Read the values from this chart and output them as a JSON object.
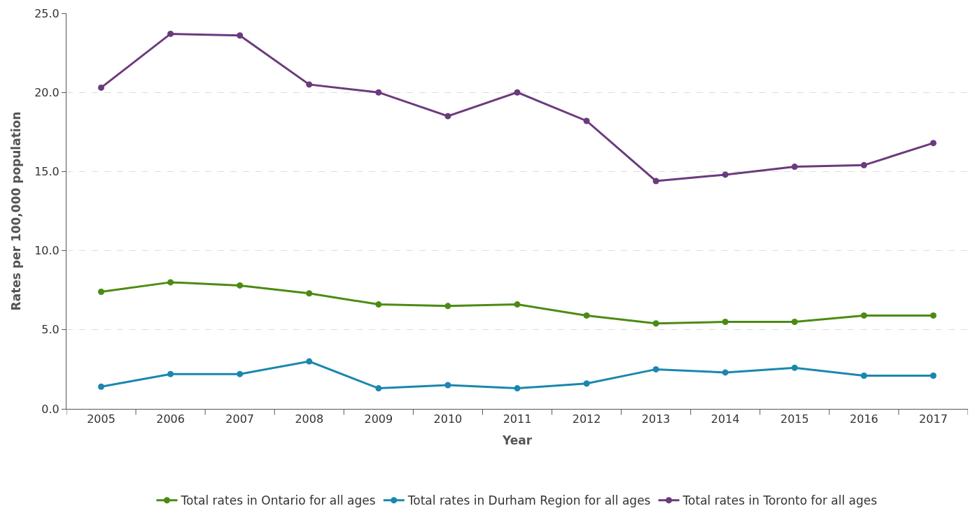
{
  "chart_data": {
    "type": "line",
    "xlabel": "Year",
    "ylabel": "Rates per 100,000 population",
    "categories": [
      "2005",
      "2006",
      "2007",
      "2008",
      "2009",
      "2010",
      "2011",
      "2012",
      "2013",
      "2014",
      "2015",
      "2016",
      "2017"
    ],
    "series": [
      {
        "name": "Total rates in Ontario for all ages",
        "color": "#4b8b12",
        "values": [
          7.4,
          8.0,
          7.8,
          7.3,
          6.6,
          6.5,
          6.6,
          5.9,
          5.4,
          5.5,
          5.5,
          5.9,
          5.9
        ]
      },
      {
        "name": "Total rates in Durham Region for all ages",
        "color": "#1a87ae",
        "values": [
          1.4,
          2.2,
          2.2,
          3.0,
          1.3,
          1.5,
          1.3,
          1.6,
          2.5,
          2.3,
          2.6,
          2.1,
          2.1
        ]
      },
      {
        "name": "Total rates in Toronto for all ages",
        "color": "#6b3a7d",
        "values": [
          20.3,
          23.7,
          23.6,
          20.5,
          20.0,
          18.5,
          20.0,
          18.2,
          14.4,
          14.8,
          15.3,
          15.4,
          16.8
        ]
      }
    ],
    "ylim": [
      0,
      25
    ],
    "yticks": [
      {
        "value": 0,
        "label": "0.0"
      },
      {
        "value": 5,
        "label": "5.0"
      },
      {
        "value": 10,
        "label": "10.0"
      },
      {
        "value": 15,
        "label": "15.0"
      },
      {
        "value": 20,
        "label": "20.0"
      },
      {
        "value": 25,
        "label": "25.0"
      }
    ],
    "grid": "y",
    "legend": "bottom",
    "marker": "circle",
    "line_style": "solid"
  }
}
